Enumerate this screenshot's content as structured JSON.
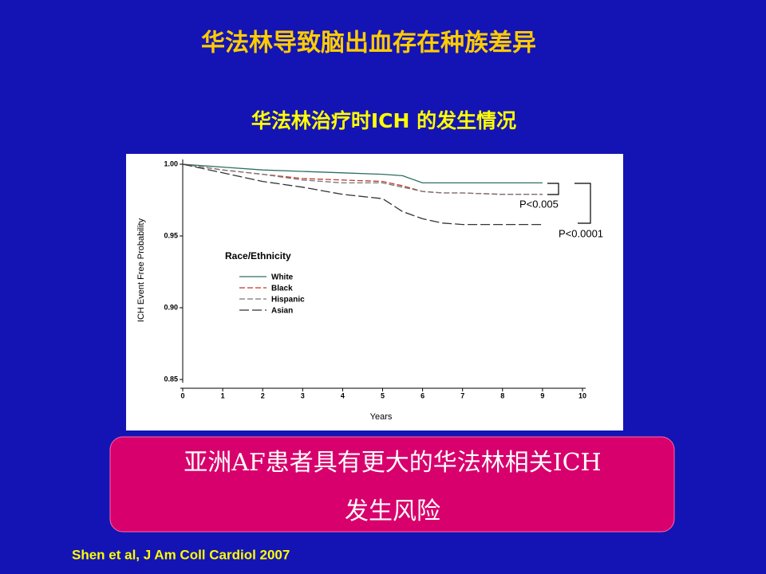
{
  "title": "华法林导致脑出血存在种族差异",
  "subtitle": "华法林治疗时ICH 的发生情况",
  "callout": {
    "lines": [
      "亚洲AF患者具有更大的华法林相关ICH",
      "发生风险"
    ]
  },
  "citation": "Shen et al, J Am Coll Cardiol 2007",
  "chart_data": {
    "type": "line",
    "x_label": "Years",
    "y_label": "ICH Event Free Probability",
    "legend_title": "Race/Ethnicity",
    "annotations": [
      "P<0.005",
      "P<0.0001"
    ],
    "x": [
      0,
      1,
      2,
      3,
      4,
      5,
      5.5,
      6,
      6.5,
      7,
      8,
      9
    ],
    "series": [
      {
        "name": "White",
        "color": "#2e6f62",
        "style": "solid",
        "values": [
          1.0,
          0.998,
          0.996,
          0.995,
          0.994,
          0.993,
          0.992,
          0.987,
          0.987,
          0.987,
          0.987,
          0.987
        ]
      },
      {
        "name": "Black",
        "color": "#c0392b",
        "style": "dashed",
        "values": [
          1.0,
          0.996,
          0.993,
          0.99,
          0.989,
          0.988,
          0.985,
          0.981,
          0.98,
          0.98,
          0.979,
          0.979
        ]
      },
      {
        "name": "Hispanic",
        "color": "#777777",
        "style": "dashed",
        "values": [
          1.0,
          0.996,
          0.993,
          0.989,
          0.987,
          0.987,
          0.984,
          0.981,
          0.98,
          0.98,
          0.979,
          0.979
        ]
      },
      {
        "name": "Asian",
        "color": "#333333",
        "style": "longdash",
        "values": [
          1.0,
          0.994,
          0.988,
          0.984,
          0.979,
          0.976,
          0.967,
          0.962,
          0.959,
          0.958,
          0.958,
          0.958
        ]
      }
    ],
    "xlim": [
      0,
      10
    ],
    "xticks": [
      0,
      1,
      2,
      3,
      4,
      5,
      6,
      7,
      8,
      9,
      10
    ],
    "ylim": [
      0.85,
      1.0
    ],
    "yticks": [
      0.85,
      {
        "value": 0.9,
        "label": "0.90"
      },
      0.95,
      {
        "value": 1.0,
        "label": "1.00"
      }
    ],
    "grid": false
  }
}
